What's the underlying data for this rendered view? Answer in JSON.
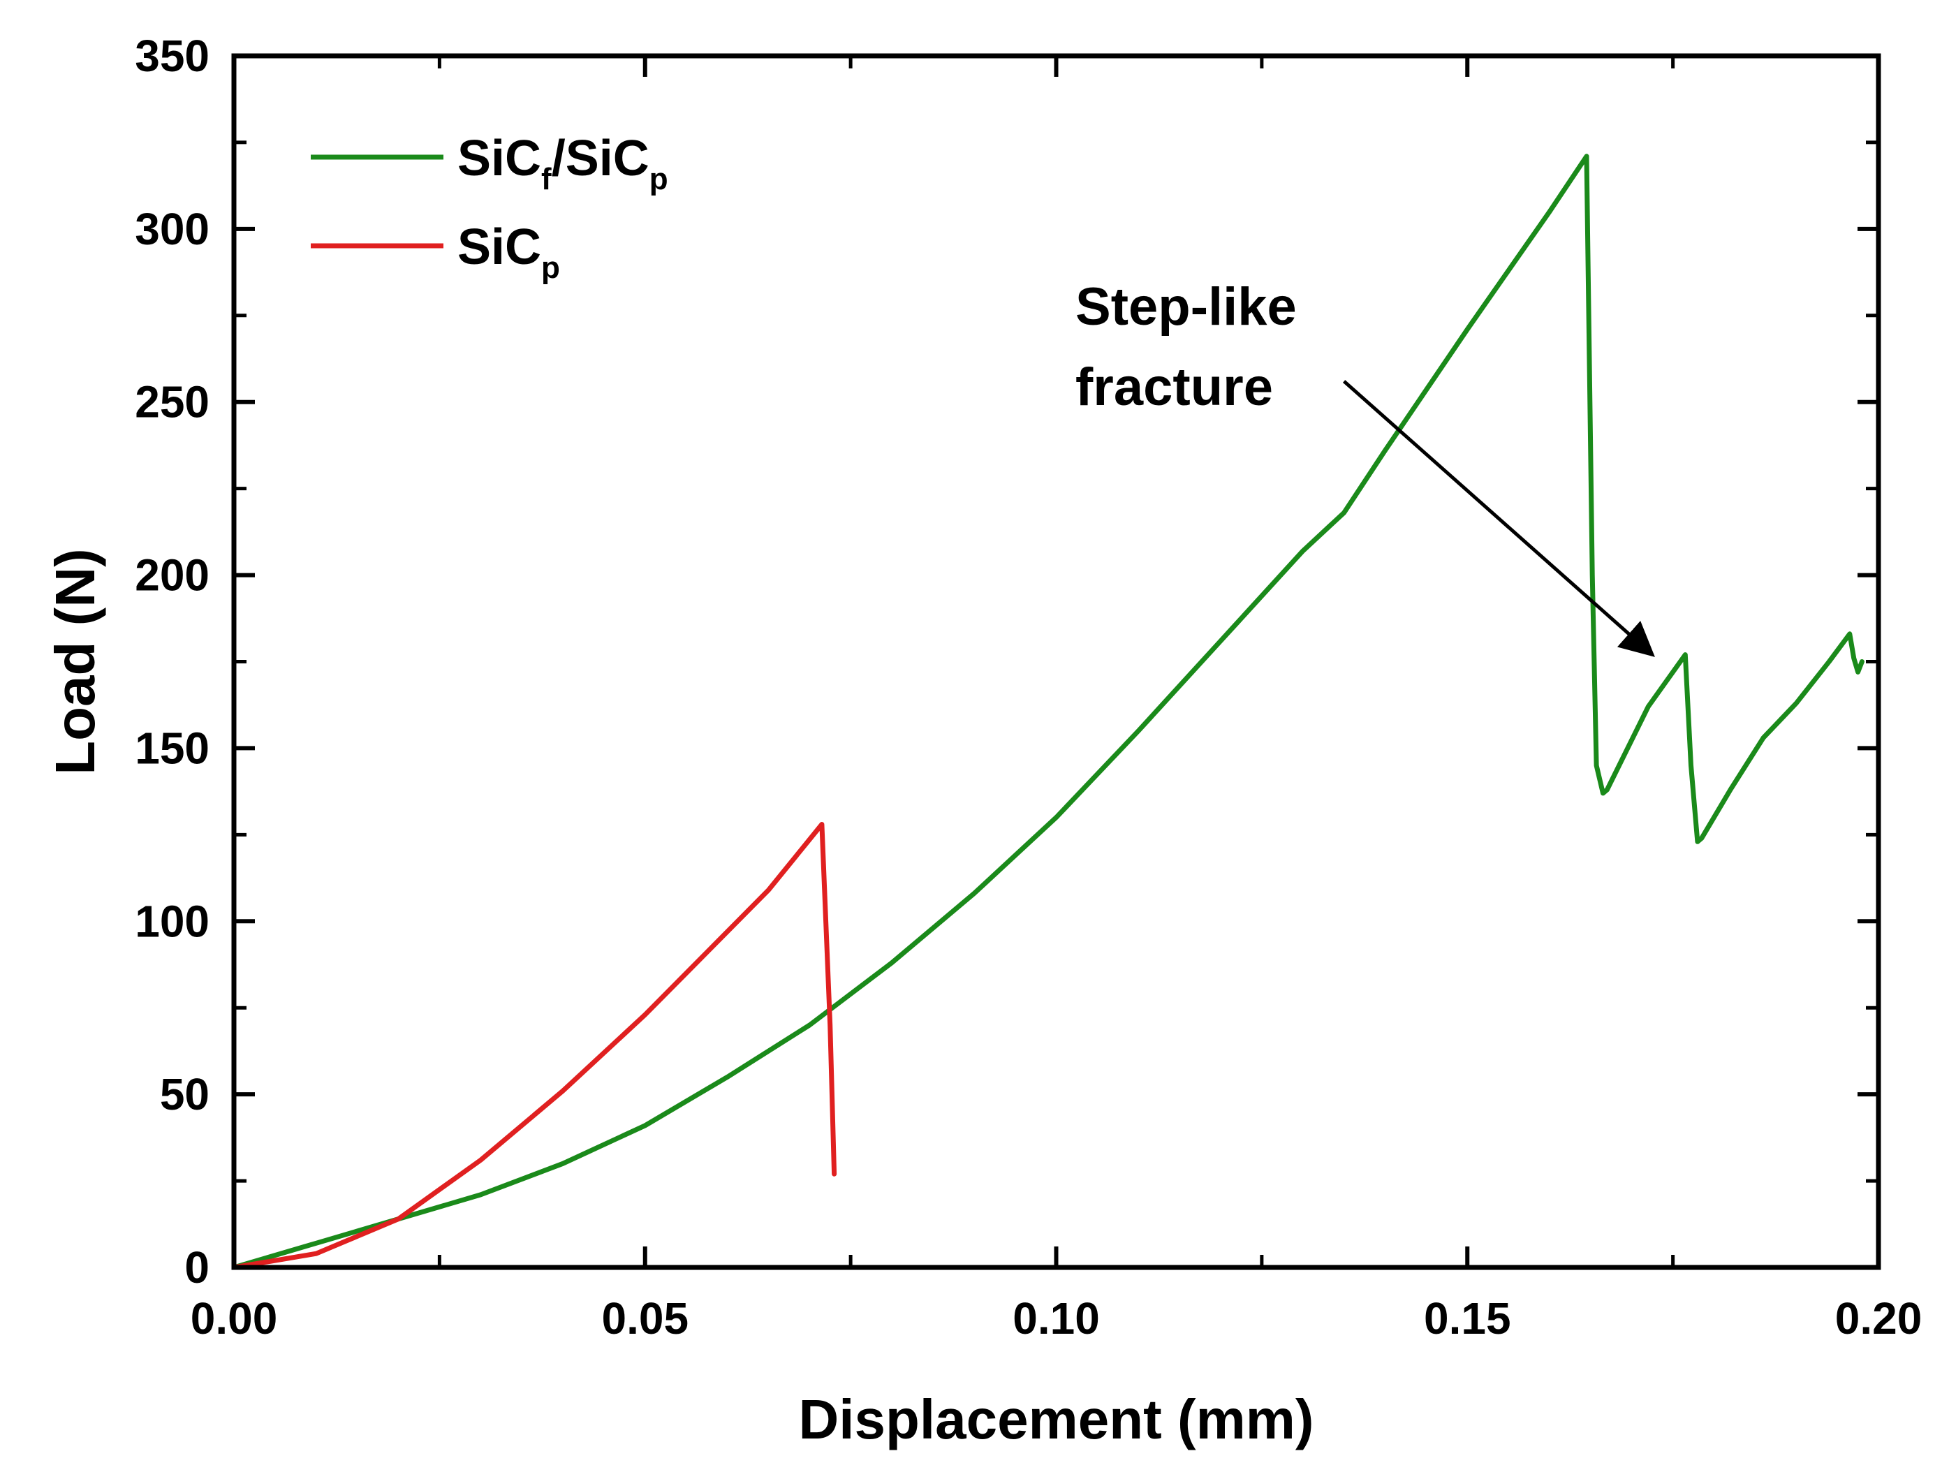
{
  "chart_data": {
    "type": "line",
    "title": "",
    "xlabel": "Displacement (mm)",
    "ylabel": "Load (N)",
    "xlim": [
      0.0,
      0.2
    ],
    "ylim": [
      0,
      350
    ],
    "xticks": [
      "0.00",
      "0.05",
      "0.10",
      "0.15",
      "0.20"
    ],
    "xtick_values": [
      0.0,
      0.05,
      0.1,
      0.15,
      0.2
    ],
    "yticks": [
      "0",
      "50",
      "100",
      "150",
      "200",
      "250",
      "300",
      "350"
    ],
    "ytick_values": [
      0,
      50,
      100,
      150,
      200,
      250,
      300,
      350
    ],
    "x_minor_step": 0.025,
    "y_minor_step": 25,
    "grid": false,
    "legend_position": "top-left",
    "series": [
      {
        "name": "SiCf/SiCp",
        "legend_main": "SiC",
        "legend_sub1": "f",
        "legend_mid": "/SiC",
        "legend_sub2": "p",
        "color": "#1a8a1a",
        "x": [
          0.0,
          0.01,
          0.02,
          0.03,
          0.04,
          0.05,
          0.06,
          0.07,
          0.08,
          0.09,
          0.1,
          0.11,
          0.12,
          0.13,
          0.135,
          0.14,
          0.15,
          0.16,
          0.1645,
          0.1652,
          0.1657,
          0.1665,
          0.167,
          0.172,
          0.1765,
          0.1772,
          0.178,
          0.1785,
          0.182,
          0.186,
          0.188,
          0.19,
          0.194,
          0.1965,
          0.197,
          0.1975,
          0.198
        ],
        "y": [
          0,
          7,
          14,
          21,
          30,
          41,
          55,
          70,
          88,
          108,
          130,
          155,
          181,
          207,
          218,
          236,
          271,
          305,
          321,
          200,
          145,
          137,
          138,
          162,
          177,
          145,
          123,
          124,
          138,
          153,
          158,
          163,
          175,
          183,
          176,
          172,
          175
        ]
      },
      {
        "name": "SiCp",
        "legend_main": "SiC",
        "legend_sub1": "p",
        "color": "#e02020",
        "x": [
          0.0,
          0.01,
          0.02,
          0.03,
          0.04,
          0.05,
          0.06,
          0.065,
          0.0715,
          0.0725,
          0.073
        ],
        "y": [
          0,
          4,
          14,
          31,
          51,
          73,
          97,
          109,
          128,
          70,
          27
        ]
      }
    ],
    "annotations": [
      {
        "line1": "Step-like",
        "line2": "fracture",
        "arrow_from": [
          0.135,
          256
        ],
        "arrow_to": [
          0.1725,
          177
        ]
      }
    ]
  }
}
